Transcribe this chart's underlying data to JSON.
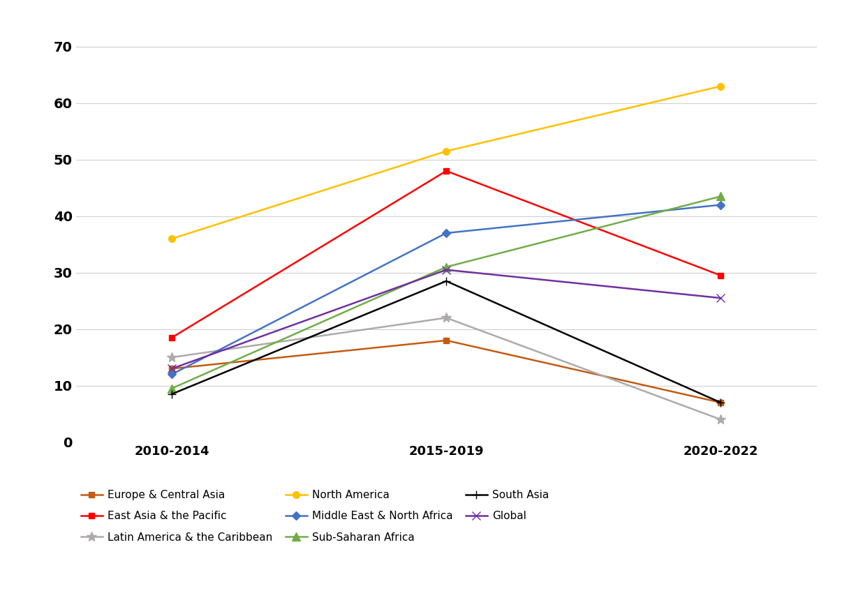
{
  "periods": [
    "2010-2014",
    "2015-2019",
    "2020-2022"
  ],
  "series": [
    {
      "label": "Europe & Central Asia",
      "values": [
        13.0,
        18.0,
        7.0
      ],
      "color": "#C55A11",
      "marker": "s",
      "markersize": 6,
      "linewidth": 1.8
    },
    {
      "label": "East Asia & the Pacific",
      "values": [
        18.5,
        48.0,
        29.5
      ],
      "color": "#FF0000",
      "marker": "s",
      "markersize": 6,
      "linewidth": 1.8
    },
    {
      "label": "Latin America & the Caribbean",
      "values": [
        15.0,
        22.0,
        4.0
      ],
      "color": "#AEAAAA",
      "marker": "*",
      "markersize": 10,
      "linewidth": 1.8
    },
    {
      "label": "North America",
      "values": [
        36.0,
        51.5,
        63.0
      ],
      "color": "#FFC000",
      "marker": "o",
      "markersize": 7,
      "linewidth": 1.8
    },
    {
      "label": "Middle East & North Africa",
      "values": [
        12.0,
        37.0,
        42.0
      ],
      "color": "#4472C4",
      "marker": "D",
      "markersize": 6,
      "linewidth": 1.8
    },
    {
      "label": "Sub-Saharan Africa",
      "values": [
        9.5,
        31.0,
        43.5
      ],
      "color": "#70AD47",
      "marker": "^",
      "markersize": 8,
      "linewidth": 1.8
    },
    {
      "label": "South Asia",
      "values": [
        8.5,
        28.5,
        7.0
      ],
      "color": "#000000",
      "marker": "+",
      "markersize": 9,
      "linewidth": 1.8
    },
    {
      "label": "Global",
      "values": [
        13.0,
        30.5,
        25.5
      ],
      "color": "#7030A0",
      "marker": "x",
      "markersize": 8,
      "linewidth": 1.8
    }
  ],
  "legend_order": [
    0,
    1,
    2,
    3,
    4,
    5,
    6,
    7
  ],
  "ylim": [
    0,
    75
  ],
  "yticks": [
    0,
    10,
    20,
    30,
    40,
    50,
    60,
    70
  ],
  "background_color": "#FFFFFF",
  "grid_color": "#D0D0D0",
  "legend_fontsize": 11,
  "tick_fontsize": 14,
  "xtick_fontsize": 13
}
